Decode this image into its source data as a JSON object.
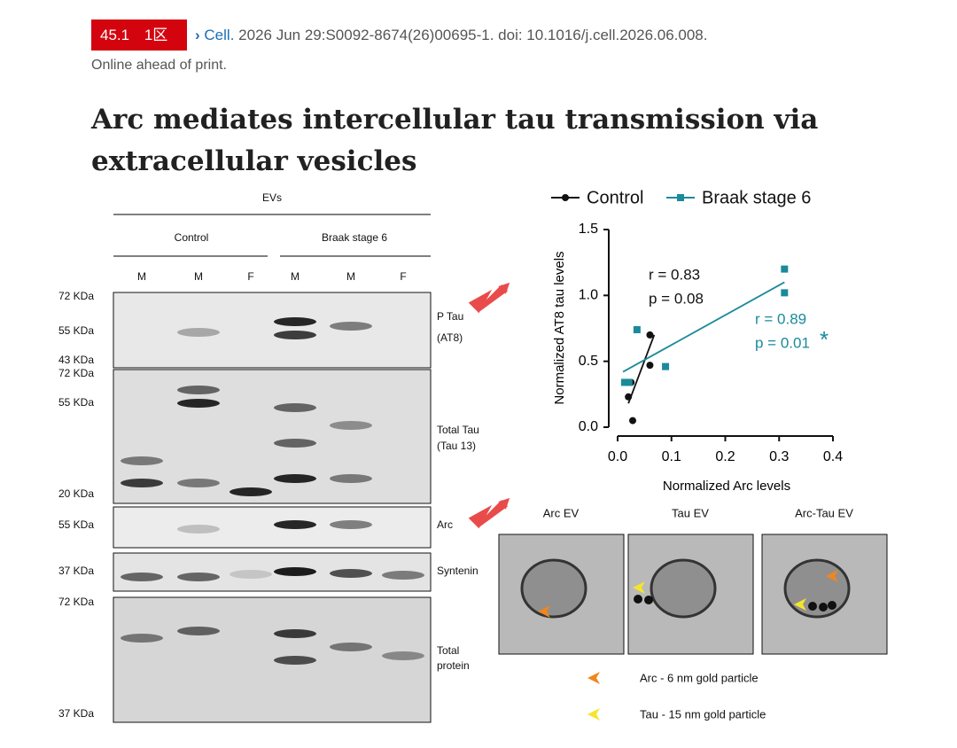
{
  "header": {
    "impact": "45.1",
    "zone": "1区",
    "journal": "Cell.",
    "citation": "2026 Jun 29:S0092-8674(26)00695-1. doi: 10.1016/j.cell.2026.06.008.",
    "status": "Online ahead of print."
  },
  "title": "Arc mediates intercellular tau transmission via extracellular vesicles",
  "blot": {
    "group": "EVs",
    "groups": [
      "Control",
      "Braak stage 6"
    ],
    "lanes": [
      "M",
      "M",
      "F",
      "M",
      "M",
      "F"
    ],
    "markers": [
      "72 KDa",
      "55 KDa",
      "43 KDa",
      "72 KDa",
      "55 KDa",
      "20 KDa",
      "55 KDa",
      "37 KDa",
      "72 KDa",
      "37 KDa"
    ],
    "rows": [
      [
        "P Tau",
        "(AT8)"
      ],
      [
        "Total Tau",
        "(Tau 13)"
      ],
      [
        "Arc"
      ],
      [
        "Syntenin"
      ],
      [
        "Total",
        "protein"
      ]
    ]
  },
  "chart_data": {
    "type": "scatter",
    "xlabel": "Normalized Arc levels",
    "ylabel": "Normalized AT8 tau levels",
    "xlim": [
      0,
      0.4
    ],
    "ylim": [
      0,
      1.5
    ],
    "xticks": [
      {
        "value": 0,
        "label": "0.0"
      },
      0.1,
      0.2,
      0.3,
      0.4
    ],
    "yticks": [
      {
        "value": 0,
        "label": "0.0"
      },
      0.5,
      {
        "value": 1,
        "label": "1.0"
      },
      1.5
    ],
    "series": [
      {
        "name": "Control",
        "color": "#111111",
        "x": [
          0.02,
          0.025,
          0.028,
          0.06,
          0.06
        ],
        "values": [
          0.23,
          0.34,
          0.05,
          0.7,
          0.47
        ],
        "fit_x": [
          0.02,
          0.068
        ],
        "fit": [
          0.18,
          0.7
        ]
      },
      {
        "name": "Braak stage 6",
        "color": "#1b8a9a",
        "x": [
          0.013,
          0.021,
          0.036,
          0.089,
          0.31,
          0.31
        ],
        "values": [
          0.34,
          0.34,
          0.74,
          0.46,
          1.2,
          1.02
        ],
        "fit_x": [
          0.01,
          0.31
        ],
        "fit": [
          0.42,
          1.1
        ]
      }
    ],
    "annotations": [
      "r = 0.83",
      "p = 0.08",
      "r = 0.89",
      "p = 0.01",
      "*"
    ]
  },
  "em": {
    "panels": [
      "Arc EV",
      "Tau EV",
      "Arc-Tau EV"
    ],
    "legend": [
      "Arc - 6 nm gold particle",
      "Tau - 15 nm gold particle"
    ]
  }
}
